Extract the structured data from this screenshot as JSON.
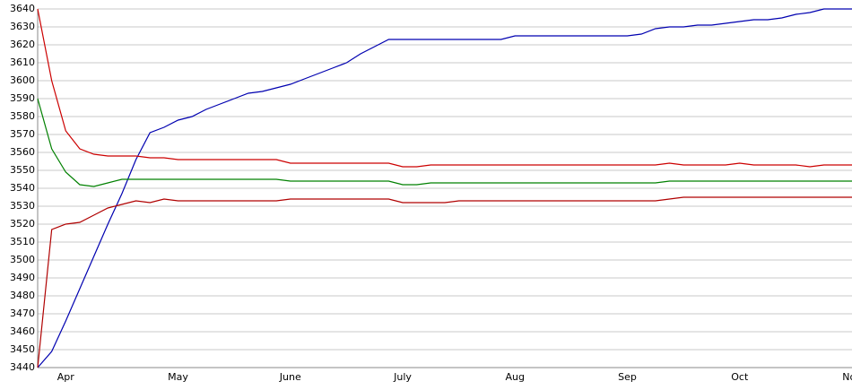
{
  "chart_data": {
    "type": "line",
    "categories": [
      null,
      null,
      "Apr",
      null,
      null,
      null,
      null,
      null,
      null,
      null,
      "May",
      null,
      null,
      null,
      null,
      null,
      null,
      null,
      "June",
      null,
      null,
      null,
      null,
      null,
      null,
      null,
      "July",
      null,
      null,
      null,
      null,
      null,
      null,
      null,
      "Aug",
      null,
      null,
      null,
      null,
      null,
      null,
      null,
      "Sep",
      null,
      null,
      null,
      null,
      null,
      null,
      null,
      "Oct",
      null,
      null,
      null,
      null,
      null,
      null,
      null,
      "Nov"
    ],
    "series": [
      {
        "color": "#0000b0",
        "values": [
          3440,
          3449,
          3466,
          3484,
          3502,
          3520,
          3537,
          3556,
          3571,
          3574,
          3578,
          3580,
          3584,
          3587,
          3590,
          3593,
          3594,
          3596,
          3598,
          3601,
          3604,
          3607,
          3610,
          3615,
          3619,
          3623,
          3623,
          3623,
          3623,
          3623,
          3623,
          3623,
          3623,
          3623,
          3625,
          3625,
          3625,
          3625,
          3625,
          3625,
          3625,
          3625,
          3625,
          3626,
          3629,
          3630,
          3630,
          3631,
          3631,
          3632,
          3633,
          3634,
          3634,
          3635,
          3637,
          3638,
          3640,
          3640,
          3640
        ]
      },
      {
        "color": "#cc0000",
        "values": [
          3640,
          3600,
          3572,
          3562,
          3559,
          3558,
          3558,
          3558,
          3557,
          3557,
          3556,
          3556,
          3556,
          3556,
          3556,
          3556,
          3556,
          3556,
          3554,
          3554,
          3554,
          3554,
          3554,
          3554,
          3554,
          3554,
          3552,
          3552,
          3553,
          3553,
          3553,
          3553,
          3553,
          3553,
          3553,
          3553,
          3553,
          3553,
          3553,
          3553,
          3553,
          3553,
          3553,
          3553,
          3553,
          3554,
          3553,
          3553,
          3553,
          3553,
          3554,
          3553,
          3553,
          3553,
          3553,
          3552,
          3553,
          3553,
          3553
        ]
      },
      {
        "color": "#008000",
        "values": [
          3590,
          3562,
          3549,
          3542,
          3541,
          3543,
          3545,
          3545,
          3545,
          3545,
          3545,
          3545,
          3545,
          3545,
          3545,
          3545,
          3545,
          3545,
          3544,
          3544,
          3544,
          3544,
          3544,
          3544,
          3544,
          3544,
          3542,
          3542,
          3543,
          3543,
          3543,
          3543,
          3543,
          3543,
          3543,
          3543,
          3543,
          3543,
          3543,
          3543,
          3543,
          3543,
          3543,
          3543,
          3543,
          3544,
          3544,
          3544,
          3544,
          3544,
          3544,
          3544,
          3544,
          3544,
          3544,
          3544,
          3544,
          3544,
          3544
        ]
      },
      {
        "color": "#b00000",
        "values": [
          3440,
          3517,
          3520,
          3521,
          3525,
          3529,
          3531,
          3533,
          3532,
          3534,
          3533,
          3533,
          3533,
          3533,
          3533,
          3533,
          3533,
          3533,
          3534,
          3534,
          3534,
          3534,
          3534,
          3534,
          3534,
          3534,
          3532,
          3532,
          3532,
          3532,
          3533,
          3533,
          3533,
          3533,
          3533,
          3533,
          3533,
          3533,
          3533,
          3533,
          3533,
          3533,
          3533,
          3533,
          3533,
          3534,
          3535,
          3535,
          3535,
          3535,
          3535,
          3535,
          3535,
          3535,
          3535,
          3535,
          3535,
          3535,
          3535
        ]
      }
    ],
    "ylim": [
      3440,
      3640
    ],
    "yticks": [
      3440,
      3450,
      3460,
      3470,
      3480,
      3490,
      3500,
      3510,
      3520,
      3530,
      3540,
      3550,
      3560,
      3570,
      3580,
      3590,
      3600,
      3610,
      3620,
      3630,
      3640
    ],
    "grid": true
  }
}
